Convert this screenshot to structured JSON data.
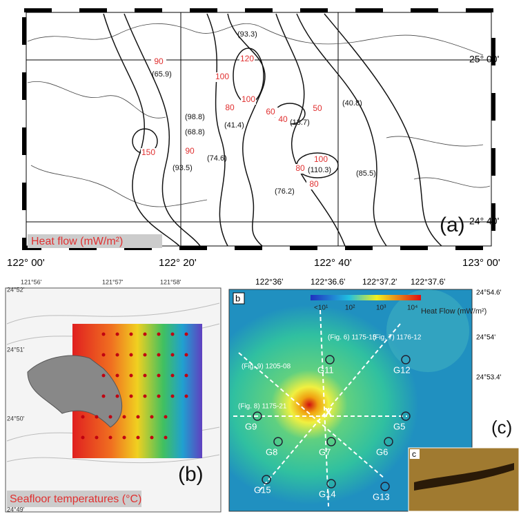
{
  "panel_a": {
    "tag": "(a)",
    "caption": "Heat flow  (mW/m²)",
    "lon_labels": [
      "122° 00'",
      "122° 20'",
      "122° 40'",
      "123° 00'"
    ],
    "lat_labels": [
      "25° 00'",
      "24° 40'"
    ],
    "contour_labels": [
      90,
      120,
      100,
      100,
      150,
      90,
      80,
      60,
      40,
      50,
      100,
      80,
      80
    ],
    "station_values": [
      "(93.3)",
      "(65.9)",
      "(98.8)",
      "(68.8)",
      "(41.4)",
      "(13.7)",
      "(40.8)",
      "(85.5)",
      "(110.3)",
      "(76.2)",
      "(93.5)",
      "(74.6)"
    ]
  },
  "panel_b": {
    "tag": "(b)",
    "caption": "Seafloor temperatures (°C)",
    "lon_labels": [
      "121°56'",
      "121°57'",
      "121°58'"
    ],
    "lat_labels": [
      "24°52'",
      "24°51'",
      "24°50'",
      "24°49'"
    ]
  },
  "panel_c": {
    "tag": "(c)",
    "sub_b": "b",
    "sub_c": "c",
    "lon_labels": [
      "122°36'",
      "122°36.6'",
      "122°37.2'",
      "122°37.6'"
    ],
    "lat_labels": [
      "24°54.6'",
      "24°54'",
      "24°53.4'"
    ],
    "legend_title": "Heat Flow (mW/m²)",
    "legend_ticks": [
      "<10¹",
      "10²",
      "10³",
      "10⁴"
    ],
    "profiles": [
      "(Fig. 9) 1205-08",
      "(Fig. 6) 1175-15",
      "(Fig. 7) 1176-12",
      "(Fig. 8) 1175-21"
    ],
    "stations": [
      "G11",
      "G12",
      "G9",
      "G5",
      "G8",
      "G7",
      "G6",
      "G15",
      "G14",
      "G13"
    ]
  }
}
